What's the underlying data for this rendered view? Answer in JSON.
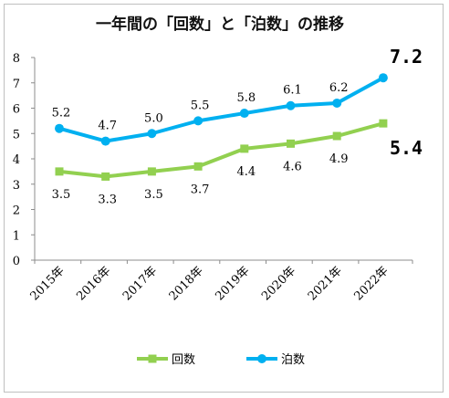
{
  "chart_data": {
    "type": "line",
    "title": "一年間の「回数」と「泊数」の推移",
    "categories": [
      "2015年",
      "2016年",
      "2017年",
      "2018年",
      "2019年",
      "2020年",
      "2021年",
      "2022年"
    ],
    "ylim": [
      0,
      8
    ],
    "yticks": [
      "0",
      "1",
      "2",
      "3",
      "4",
      "5",
      "6",
      "7",
      "8"
    ],
    "grid": false,
    "legend_position": "bottom",
    "series": [
      {
        "name": "回数",
        "color": "#92d050",
        "marker": "square",
        "values": [
          3.5,
          3.3,
          3.5,
          3.7,
          4.4,
          4.6,
          4.9,
          5.4
        ],
        "labels": [
          "3.5",
          "3.3",
          "3.5",
          "3.7",
          "4.4",
          "4.6",
          "4.9",
          "5.4"
        ]
      },
      {
        "name": "泊数",
        "color": "#00b0f0",
        "marker": "circle",
        "values": [
          5.2,
          4.7,
          5.0,
          5.5,
          5.8,
          6.1,
          6.2,
          7.2
        ],
        "labels": [
          "5.2",
          "4.7",
          "5.0",
          "5.5",
          "5.8",
          "6.1",
          "6.2",
          "7.2"
        ]
      }
    ]
  }
}
